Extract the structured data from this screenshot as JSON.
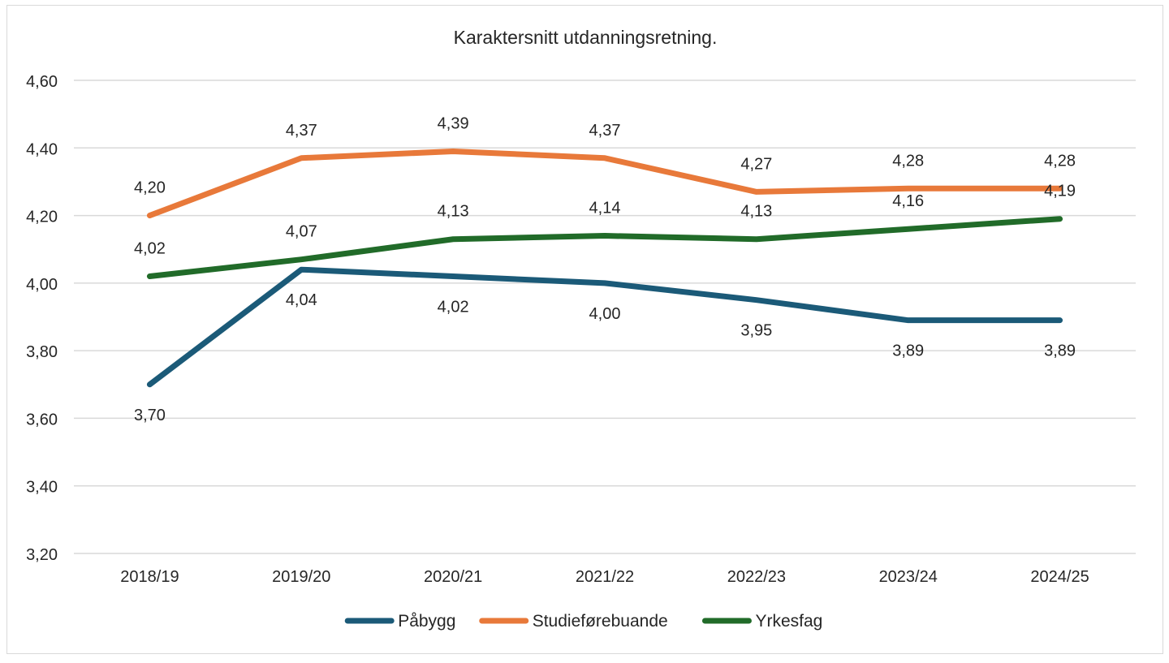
{
  "chart_data": {
    "type": "line",
    "title": "Karaktersnitt utdanningsretning.",
    "xlabel": "",
    "ylabel": "",
    "categories": [
      "2018/19",
      "2019/20",
      "2020/21",
      "2021/22",
      "2022/23",
      "2023/24",
      "2024/25"
    ],
    "ylim": [
      3.2,
      4.6
    ],
    "y_ticks": [
      "3,20",
      "3,40",
      "3,60",
      "3,80",
      "4,00",
      "4,20",
      "4,40",
      "4,60"
    ],
    "grid": true,
    "legend_position": "bottom",
    "series": [
      {
        "name": "Påbygg",
        "color": "#1b5a78",
        "values": [
          3.7,
          4.04,
          4.02,
          4.0,
          3.95,
          3.89,
          3.89
        ],
        "labels": [
          "3,70",
          "4,04",
          "4,02",
          "4,00",
          "3,95",
          "3,89",
          "3,89"
        ],
        "label_position": "below"
      },
      {
        "name": "Studieførebuande",
        "color": "#e8793a",
        "values": [
          4.2,
          4.37,
          4.39,
          4.37,
          4.27,
          4.28,
          4.28
        ],
        "labels": [
          "4,20",
          "4,37",
          "4,39",
          "4,37",
          "4,27",
          "4,28",
          "4,28"
        ],
        "label_position": "above"
      },
      {
        "name": "Yrkesfag",
        "color": "#216b29",
        "values": [
          4.02,
          4.07,
          4.13,
          4.14,
          4.13,
          4.16,
          4.19
        ],
        "labels": [
          "4,02",
          "4,07",
          "4,13",
          "4,14",
          "4,13",
          "4,16",
          "4,19"
        ],
        "label_position": "above"
      }
    ]
  }
}
